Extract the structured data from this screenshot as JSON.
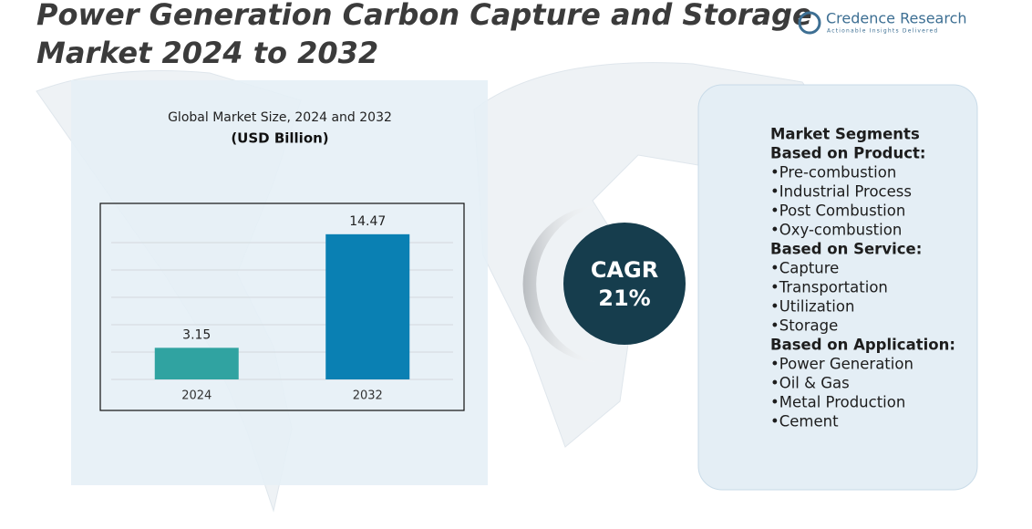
{
  "header": {
    "title_lines": [
      "Power Generation Carbon Capture and Storage",
      "Market 2024 to 2032"
    ],
    "logo": {
      "name": "Credence Research",
      "tagline": "Actionable Insights Delivered"
    }
  },
  "chart_data": {
    "type": "bar",
    "title": "Global Market Size, 2024 and 2032",
    "subtitle": "(USD Billion)",
    "categories": [
      "2024",
      "2032"
    ],
    "values": [
      3.15,
      14.47
    ],
    "colors": [
      "#30a3a1",
      "#0a80b3"
    ],
    "ylim": [
      0,
      16
    ]
  },
  "cagr": {
    "label": "CAGR",
    "value": "21%"
  },
  "segments": {
    "title": "Market Segments",
    "groups": [
      {
        "heading": "Based on Product:",
        "items": [
          "•Pre-combustion",
          "•Industrial Process",
          "•Post Combustion",
          "•Oxy-combustion"
        ]
      },
      {
        "heading": "Based on Service:",
        "items": [
          "•Capture",
          "•Transportation",
          "•Utilization",
          "•Storage"
        ]
      },
      {
        "heading": "Based on Application:",
        "items": [
          "•Power Generation",
          "•Oil & Gas",
          "•Metal Production",
          "•Cement"
        ]
      }
    ]
  }
}
